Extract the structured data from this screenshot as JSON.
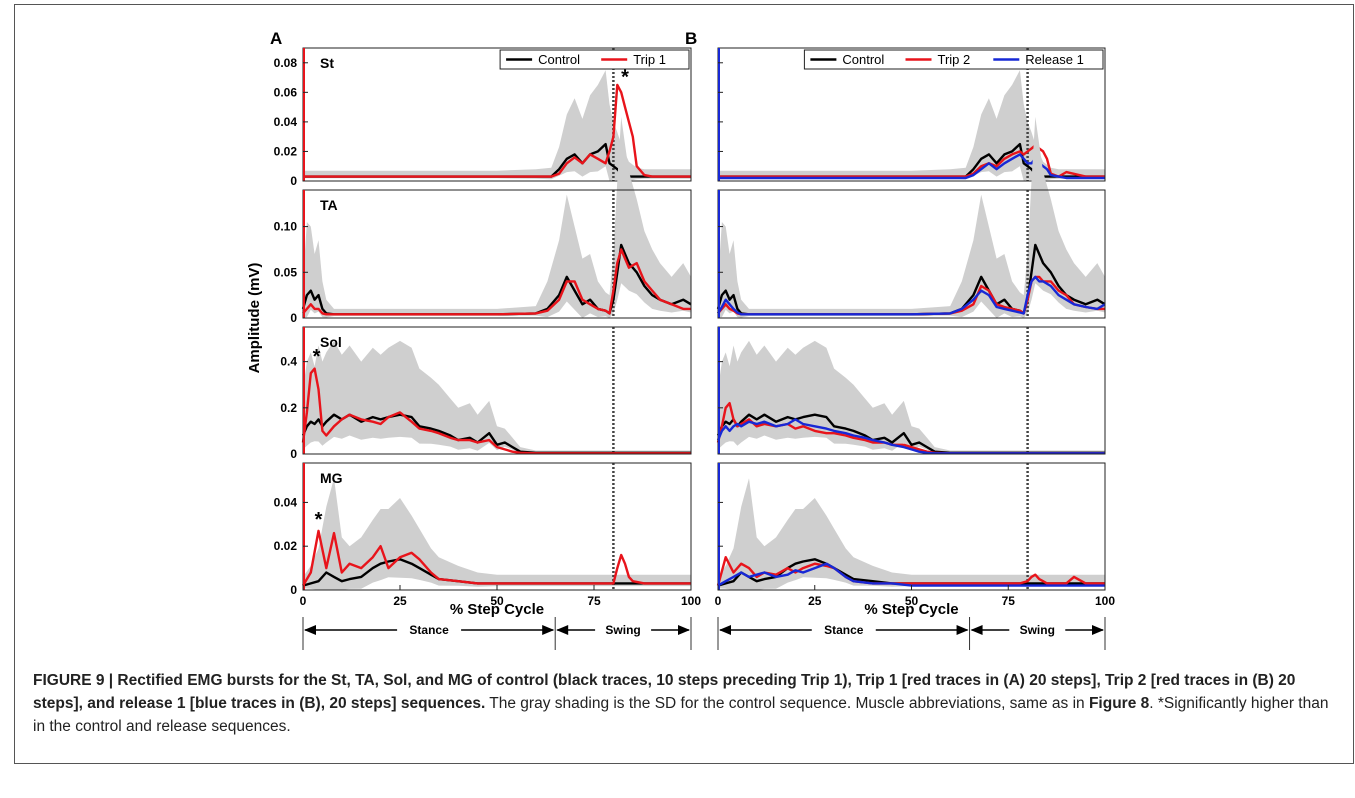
{
  "figure": {
    "panel_labels": [
      "A",
      "B"
    ],
    "ylabel": "Amplitude (mV)",
    "xlabel": "% Step Cycle",
    "x_ticks": [
      "0",
      "25",
      "50",
      "75",
      "100"
    ],
    "phase_stance": "Stance",
    "phase_swing": "Swing",
    "star": "*"
  },
  "caption": {
    "bold": "FIGURE 9 | Rectified EMG bursts for the St, TA, Sol, and MG of control (black traces, 10 steps preceding Trip 1), Trip 1 [red traces in (A) 20 steps], Trip 2 [red traces in (B) 20 steps], and release 1 [blue traces in (B), 20 steps] sequences.",
    "mid": " The gray shading is the SD for the control sequence. Muscle abbreviations, same as in ",
    "ref": "Figure 8",
    "tail": ". *Significantly higher than in the control and release sequences."
  },
  "colors": {
    "control": "#000000",
    "trip": "#e8141b",
    "release": "#1728d6",
    "sd": "#cfcfcf",
    "border": "#444444"
  },
  "chart_data": {
    "type": "line",
    "x_range": [
      0,
      100
    ],
    "swing_onset": 80,
    "stance_swing_boundary": 65,
    "legends": {
      "A": [
        "Control",
        "Trip 1"
      ],
      "B": [
        "Control",
        "Trip 2",
        "Release 1"
      ]
    },
    "muscles": [
      {
        "name": "St",
        "ylim": [
          0,
          0.09
        ],
        "yticks": [
          "0",
          "0.02",
          "0.04",
          "0.06",
          "0.08"
        ],
        "ytick_vals": [
          0,
          0.02,
          0.04,
          0.06,
          0.08
        ],
        "star": {
          "A": [
            83,
            0.07
          ]
        },
        "x": [
          0,
          2,
          5,
          10,
          20,
          30,
          40,
          50,
          60,
          64,
          66,
          68,
          70,
          72,
          74,
          76,
          78,
          79,
          80,
          81,
          82,
          83,
          84,
          85,
          86,
          88,
          90,
          95,
          100
        ],
        "control": [
          0.003,
          0.003,
          0.003,
          0.003,
          0.003,
          0.003,
          0.003,
          0.003,
          0.003,
          0.003,
          0.008,
          0.015,
          0.018,
          0.012,
          0.018,
          0.02,
          0.025,
          0.012,
          0.01,
          0.008,
          0.005,
          0.004,
          0.003,
          0.003,
          0.003,
          0.003,
          0.003,
          0.003,
          0.003
        ],
        "sd": [
          0.004,
          0.004,
          0.004,
          0.004,
          0.004,
          0.004,
          0.004,
          0.004,
          0.005,
          0.006,
          0.015,
          0.03,
          0.038,
          0.03,
          0.04,
          0.045,
          0.05,
          0.04,
          0.03,
          0.025,
          0.02,
          0.015,
          0.01,
          0.008,
          0.006,
          0.005,
          0.005,
          0.005,
          0.005
        ],
        "A_trip": [
          0.003,
          0.003,
          0.003,
          0.003,
          0.003,
          0.003,
          0.003,
          0.003,
          0.003,
          0.003,
          0.005,
          0.012,
          0.016,
          0.012,
          0.018,
          0.015,
          0.012,
          0.02,
          0.03,
          0.065,
          0.06,
          0.05,
          0.04,
          0.03,
          0.01,
          0.004,
          0.003,
          0.003,
          0.003
        ],
        "B_trip": [
          0.003,
          0.003,
          0.003,
          0.003,
          0.003,
          0.003,
          0.003,
          0.003,
          0.003,
          0.003,
          0.005,
          0.01,
          0.012,
          0.01,
          0.015,
          0.018,
          0.02,
          0.018,
          0.02,
          0.022,
          0.024,
          0.022,
          0.02,
          0.015,
          0.005,
          0.003,
          0.006,
          0.003,
          0.003
        ],
        "B_release": [
          0.002,
          0.002,
          0.002,
          0.002,
          0.002,
          0.002,
          0.002,
          0.002,
          0.002,
          0.002,
          0.004,
          0.008,
          0.012,
          0.008,
          0.012,
          0.015,
          0.018,
          0.015,
          0.012,
          0.012,
          0.015,
          0.012,
          0.01,
          0.008,
          0.004,
          0.003,
          0.002,
          0.002,
          0.002
        ]
      },
      {
        "name": "TA",
        "ylim": [
          0,
          0.14
        ],
        "yticks": [
          "0",
          "0.05",
          "0.10"
        ],
        "ytick_vals": [
          0,
          0.05,
          0.1
        ],
        "x": [
          0,
          1,
          2,
          3,
          4,
          5,
          6,
          8,
          10,
          20,
          30,
          40,
          50,
          60,
          63,
          66,
          68,
          70,
          72,
          74,
          76,
          78,
          79,
          80,
          81,
          82,
          83,
          84,
          86,
          88,
          90,
          92,
          95,
          98,
          100
        ],
        "control": [
          0.01,
          0.025,
          0.03,
          0.02,
          0.025,
          0.01,
          0.005,
          0.004,
          0.004,
          0.004,
          0.004,
          0.004,
          0.004,
          0.005,
          0.01,
          0.025,
          0.045,
          0.03,
          0.015,
          0.02,
          0.01,
          0.008,
          0.005,
          0.02,
          0.05,
          0.08,
          0.07,
          0.06,
          0.05,
          0.035,
          0.025,
          0.02,
          0.015,
          0.02,
          0.015
        ],
        "sd": [
          0.03,
          0.08,
          0.07,
          0.05,
          0.06,
          0.03,
          0.015,
          0.006,
          0.006,
          0.006,
          0.006,
          0.006,
          0.006,
          0.008,
          0.03,
          0.06,
          0.09,
          0.07,
          0.05,
          0.05,
          0.03,
          0.02,
          0.02,
          0.05,
          0.1,
          0.14,
          0.12,
          0.1,
          0.08,
          0.06,
          0.05,
          0.04,
          0.03,
          0.04,
          0.03
        ],
        "A_trip": [
          0.005,
          0.01,
          0.015,
          0.01,
          0.01,
          0.005,
          0.004,
          0.004,
          0.004,
          0.004,
          0.004,
          0.004,
          0.004,
          0.005,
          0.008,
          0.02,
          0.04,
          0.04,
          0.02,
          0.015,
          0.01,
          0.008,
          0.005,
          0.03,
          0.06,
          0.075,
          0.065,
          0.055,
          0.06,
          0.04,
          0.03,
          0.02,
          0.015,
          0.01,
          0.01
        ],
        "B_trip": [
          0.005,
          0.01,
          0.015,
          0.01,
          0.008,
          0.005,
          0.004,
          0.004,
          0.004,
          0.004,
          0.004,
          0.004,
          0.004,
          0.005,
          0.008,
          0.015,
          0.035,
          0.03,
          0.015,
          0.012,
          0.01,
          0.008,
          0.005,
          0.02,
          0.04,
          0.045,
          0.045,
          0.04,
          0.04,
          0.03,
          0.025,
          0.015,
          0.012,
          0.01,
          0.01
        ],
        "B_release": [
          0.005,
          0.012,
          0.02,
          0.015,
          0.01,
          0.006,
          0.004,
          0.004,
          0.004,
          0.004,
          0.004,
          0.004,
          0.004,
          0.005,
          0.01,
          0.02,
          0.03,
          0.025,
          0.012,
          0.01,
          0.008,
          0.006,
          0.005,
          0.025,
          0.04,
          0.045,
          0.04,
          0.04,
          0.035,
          0.025,
          0.02,
          0.015,
          0.012,
          0.01,
          0.015
        ]
      },
      {
        "name": "Sol",
        "ylim": [
          0,
          0.55
        ],
        "yticks": [
          "0",
          "0.2",
          "0.4"
        ],
        "ytick_vals": [
          0,
          0.2,
          0.4
        ],
        "star": {
          "A": [
            3.5,
            0.42
          ]
        },
        "x": [
          0,
          1,
          2,
          3,
          4,
          5,
          6,
          8,
          10,
          12,
          15,
          18,
          20,
          22,
          25,
          28,
          30,
          33,
          35,
          38,
          40,
          43,
          45,
          48,
          50,
          52,
          54,
          56,
          60,
          70,
          80,
          90,
          100
        ],
        "control": [
          0.08,
          0.12,
          0.14,
          0.13,
          0.15,
          0.12,
          0.14,
          0.17,
          0.15,
          0.17,
          0.14,
          0.16,
          0.15,
          0.16,
          0.17,
          0.16,
          0.12,
          0.11,
          0.1,
          0.08,
          0.06,
          0.07,
          0.05,
          0.09,
          0.04,
          0.05,
          0.03,
          0.01,
          0.005,
          0.005,
          0.005,
          0.005,
          0.005
        ],
        "sd": [
          0.2,
          0.28,
          0.3,
          0.25,
          0.32,
          0.28,
          0.3,
          0.32,
          0.28,
          0.3,
          0.26,
          0.3,
          0.28,
          0.3,
          0.32,
          0.3,
          0.25,
          0.22,
          0.2,
          0.16,
          0.14,
          0.15,
          0.12,
          0.14,
          0.08,
          0.06,
          0.04,
          0.02,
          0.01,
          0.01,
          0.01,
          0.01,
          0.01
        ],
        "A_trip": [
          0.05,
          0.18,
          0.35,
          0.37,
          0.28,
          0.1,
          0.08,
          0.12,
          0.15,
          0.17,
          0.15,
          0.14,
          0.13,
          0.16,
          0.18,
          0.14,
          0.11,
          0.1,
          0.09,
          0.07,
          0.06,
          0.06,
          0.05,
          0.06,
          0.03,
          0.02,
          0.01,
          0.005,
          0.003,
          0.003,
          0.003,
          0.003,
          0.003
        ],
        "B_trip": [
          0.05,
          0.12,
          0.2,
          0.22,
          0.15,
          0.12,
          0.13,
          0.15,
          0.12,
          0.13,
          0.12,
          0.13,
          0.11,
          0.12,
          0.1,
          0.09,
          0.09,
          0.08,
          0.07,
          0.06,
          0.05,
          0.05,
          0.04,
          0.04,
          0.03,
          0.02,
          0.01,
          0.005,
          0.003,
          0.003,
          0.003,
          0.003,
          0.003
        ],
        "B_release": [
          0.06,
          0.1,
          0.12,
          0.1,
          0.12,
          0.13,
          0.12,
          0.14,
          0.13,
          0.14,
          0.12,
          0.13,
          0.15,
          0.13,
          0.12,
          0.11,
          0.1,
          0.09,
          0.08,
          0.07,
          0.06,
          0.05,
          0.04,
          0.03,
          0.02,
          0.01,
          0.005,
          0.003,
          0.003,
          0.003,
          0.003,
          0.003,
          0.003
        ]
      },
      {
        "name": "MG",
        "ylim": [
          0,
          0.058
        ],
        "yticks": [
          "0",
          "0.02",
          "0.04"
        ],
        "ytick_vals": [
          0,
          0.02,
          0.04
        ],
        "star": {
          "A": [
            4,
            0.032
          ]
        },
        "x": [
          0,
          2,
          4,
          6,
          8,
          10,
          12,
          15,
          18,
          20,
          22,
          25,
          28,
          30,
          33,
          35,
          40,
          45,
          50,
          55,
          60,
          70,
          78,
          80,
          81,
          82,
          83,
          84,
          85,
          88,
          90,
          92,
          95,
          100
        ],
        "control": [
          0.002,
          0.003,
          0.004,
          0.008,
          0.006,
          0.004,
          0.005,
          0.006,
          0.01,
          0.012,
          0.013,
          0.014,
          0.012,
          0.01,
          0.007,
          0.005,
          0.004,
          0.003,
          0.003,
          0.003,
          0.003,
          0.003,
          0.003,
          0.003,
          0.003,
          0.003,
          0.003,
          0.003,
          0.003,
          0.003,
          0.003,
          0.003,
          0.003,
          0.003
        ],
        "sd": [
          0.004,
          0.008,
          0.015,
          0.03,
          0.045,
          0.02,
          0.015,
          0.018,
          0.022,
          0.025,
          0.024,
          0.028,
          0.022,
          0.018,
          0.012,
          0.01,
          0.007,
          0.005,
          0.004,
          0.004,
          0.004,
          0.004,
          0.004,
          0.004,
          0.004,
          0.004,
          0.004,
          0.004,
          0.004,
          0.004,
          0.004,
          0.004,
          0.004,
          0.004
        ],
        "A_trip": [
          0.002,
          0.008,
          0.027,
          0.01,
          0.026,
          0.008,
          0.012,
          0.01,
          0.015,
          0.02,
          0.01,
          0.015,
          0.017,
          0.014,
          0.008,
          0.005,
          0.004,
          0.003,
          0.003,
          0.003,
          0.003,
          0.003,
          0.003,
          0.003,
          0.01,
          0.016,
          0.012,
          0.006,
          0.004,
          0.003,
          0.003,
          0.003,
          0.003,
          0.003
        ],
        "B_trip": [
          0.002,
          0.015,
          0.008,
          0.012,
          0.01,
          0.006,
          0.008,
          0.007,
          0.01,
          0.008,
          0.01,
          0.012,
          0.011,
          0.01,
          0.006,
          0.004,
          0.003,
          0.003,
          0.003,
          0.003,
          0.003,
          0.003,
          0.003,
          0.004,
          0.006,
          0.007,
          0.005,
          0.004,
          0.003,
          0.003,
          0.003,
          0.006,
          0.003,
          0.003
        ],
        "B_release": [
          0.002,
          0.004,
          0.006,
          0.008,
          0.006,
          0.007,
          0.008,
          0.006,
          0.007,
          0.009,
          0.008,
          0.01,
          0.012,
          0.01,
          0.006,
          0.004,
          0.003,
          0.003,
          0.002,
          0.002,
          0.002,
          0.002,
          0.002,
          0.002,
          0.002,
          0.002,
          0.002,
          0.002,
          0.002,
          0.002,
          0.002,
          0.002,
          0.002,
          0.002
        ]
      }
    ]
  }
}
